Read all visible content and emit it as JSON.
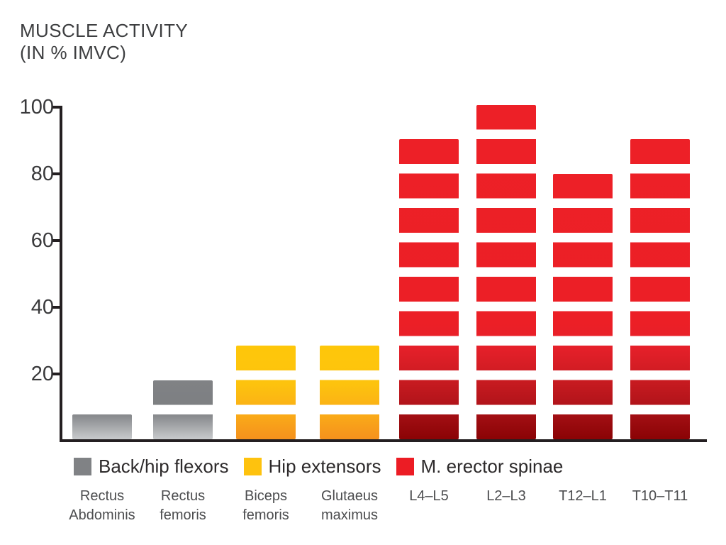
{
  "title": {
    "line1": "MUSCLE ACTIVITY",
    "line2": "(IN % IMVC)"
  },
  "y_axis": {
    "ticks": [
      100,
      80,
      60,
      40,
      20
    ],
    "min": 0,
    "max": 100
  },
  "legend": {
    "items": [
      {
        "id": "back-hip-flexors",
        "label": "Back/hip flexors",
        "color": "#808285"
      },
      {
        "id": "hip-extensors",
        "label": "Hip extensors",
        "color": "#fec20e"
      },
      {
        "id": "m-erector-spinae",
        "label": "M. erector spinae",
        "color": "#ec1c24"
      }
    ]
  },
  "bars": [
    {
      "id": "rectus-abdominis",
      "label_lines": [
        "Rectus",
        "Abdominis"
      ],
      "group": "back_hip_flexors",
      "segments": 1,
      "value": 8
    },
    {
      "id": "rectus-femoris",
      "label_lines": [
        "Rectus",
        "femoris"
      ],
      "group": "back_hip_flexors",
      "segments": 2,
      "value": 18
    },
    {
      "id": "biceps-femoris",
      "label_lines": [
        "Biceps",
        "femoris"
      ],
      "group": "hip_extensors",
      "segments": 3,
      "value": 28
    },
    {
      "id": "glutaeus-maximus",
      "label_lines": [
        "Glutaeus",
        "maximus"
      ],
      "group": "hip_extensors",
      "segments": 3,
      "value": 28
    },
    {
      "id": "l4-l5",
      "label_lines": [
        "L4–L5"
      ],
      "group": "erector_spinae",
      "segments": 9,
      "value": 89
    },
    {
      "id": "l2-l3",
      "label_lines": [
        "L2–L3"
      ],
      "group": "erector_spinae",
      "segments": 10,
      "value": 99
    },
    {
      "id": "t12-l1",
      "label_lines": [
        "T12–L1"
      ],
      "group": "erector_spinae",
      "segments": 8,
      "value": 79
    },
    {
      "id": "t10-t11",
      "label_lines": [
        "T10–T11"
      ],
      "group": "erector_spinae",
      "segments": 9,
      "value": 89
    }
  ],
  "colors": {
    "axis": "#241f21",
    "back_hip_flexors": [
      [
        "#c8cacc",
        "0px"
      ],
      [
        "#8a8c8f",
        "32px"
      ],
      [
        "#7d7f82",
        "46px"
      ],
      [
        "#808285",
        "100%"
      ]
    ],
    "hip_extensors": [
      [
        "#f5911d",
        "0px"
      ],
      [
        "#faab18",
        "35px"
      ],
      [
        "#fdc30e",
        "78px"
      ],
      [
        "#fec70a",
        "100%"
      ]
    ],
    "erector_spinae": [
      [
        "#8a0305",
        "0px"
      ],
      [
        "#a30f14",
        "35px"
      ],
      [
        "#b2141a",
        "50px"
      ],
      [
        "#ca1b21",
        "85px"
      ],
      [
        "#e6202a",
        "130px"
      ],
      [
        "#ec1f26",
        "165px"
      ],
      [
        "#ed2027",
        "100%"
      ]
    ]
  },
  "chart_data": {
    "type": "bar",
    "title": "MUSCLE ACTIVITY (IN % IMVC)",
    "xlabel": "",
    "ylabel": "Muscle activity (% IMVC)",
    "ylim": [
      0,
      100
    ],
    "yticks": [
      20,
      40,
      60,
      80,
      100
    ],
    "grid": false,
    "legend_position": "bottom",
    "categories": [
      "Rectus Abdominis",
      "Rectus femoris",
      "Biceps femoris",
      "Glutaeus maximus",
      "L4–L5",
      "L2–L3",
      "T12–L1",
      "T10–T11"
    ],
    "values": [
      8,
      18,
      28,
      28,
      89,
      99,
      79,
      89
    ],
    "segments_of_10pct": [
      1,
      2,
      3,
      3,
      9,
      10,
      8,
      9
    ],
    "groups": [
      "Back/hip flexors",
      "Back/hip flexors",
      "Hip extensors",
      "Hip extensors",
      "M. erector spinae",
      "M. erector spinae",
      "M. erector spinae",
      "M. erector spinae"
    ],
    "group_colors": {
      "Back/hip flexors": "#808285",
      "Hip extensors": "#fec20e",
      "M. erector spinae": "#ec1c24"
    }
  }
}
